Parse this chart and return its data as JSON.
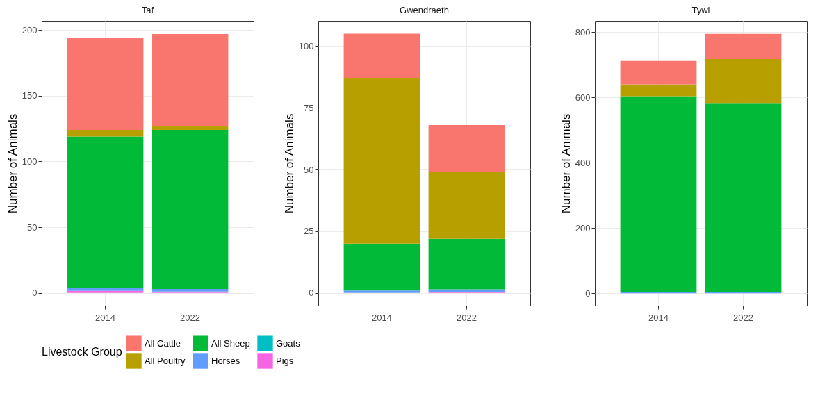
{
  "chart_data": [
    {
      "type": "bar",
      "title": "Taf",
      "ylabel": "Number of Animals",
      "categories": [
        "2014",
        "2022"
      ],
      "stacked": true,
      "ylim": [
        -9.7,
        207
      ],
      "yticks": [
        0,
        50,
        100,
        150,
        200
      ],
      "grid": true,
      "legend": "bottom",
      "legend_title": "Livestock Group",
      "series": [
        {
          "name": "Pigs",
          "color": "#f564e3",
          "values": [
            1.5,
            1
          ]
        },
        {
          "name": "Goats",
          "color": "#00bfc4",
          "values": [
            0,
            0
          ]
        },
        {
          "name": "Horses",
          "color": "#619cff",
          "values": [
            2.5,
            2
          ]
        },
        {
          "name": "All Sheep",
          "color": "#00ba38",
          "values": [
            115,
            121
          ]
        },
        {
          "name": "All Poultry",
          "color": "#b79f00",
          "values": [
            5,
            3
          ]
        },
        {
          "name": "All Cattle",
          "color": "#f8766d",
          "values": [
            70,
            70
          ]
        }
      ]
    },
    {
      "type": "bar",
      "title": "Gwendraeth",
      "ylabel": "Number of Animals",
      "categories": [
        "2014",
        "2022"
      ],
      "stacked": true,
      "ylim": [
        -5.1,
        110.2
      ],
      "yticks": [
        0,
        25,
        50,
        75,
        100
      ],
      "grid": true,
      "series": [
        {
          "name": "Pigs",
          "color": "#f564e3",
          "values": [
            0,
            0.5
          ]
        },
        {
          "name": "Horses",
          "color": "#619cff",
          "values": [
            1,
            1
          ]
        },
        {
          "name": "All Sheep",
          "color": "#00ba38",
          "values": [
            19,
            20.5
          ]
        },
        {
          "name": "All Poultry",
          "color": "#b79f00",
          "values": [
            67,
            27
          ]
        },
        {
          "name": "All Cattle",
          "color": "#f8766d",
          "values": [
            18,
            19
          ]
        }
      ]
    },
    {
      "type": "bar",
      "title": "Tywi",
      "ylabel": "Number of Animals",
      "categories": [
        "2014",
        "2022"
      ],
      "stacked": true,
      "ylim": [
        -38,
        835
      ],
      "yticks": [
        0,
        200,
        400,
        600,
        800
      ],
      "grid": true,
      "series": [
        {
          "name": "Pigs",
          "color": "#f564e3",
          "values": [
            0,
            0
          ]
        },
        {
          "name": "Horses",
          "color": "#619cff",
          "values": [
            3,
            3
          ]
        },
        {
          "name": "All Sheep",
          "color": "#00ba38",
          "values": [
            601,
            578
          ]
        },
        {
          "name": "All Poultry",
          "color": "#b79f00",
          "values": [
            36,
            137
          ]
        },
        {
          "name": "All Cattle",
          "color": "#f8766d",
          "values": [
            72,
            77
          ]
        }
      ]
    }
  ]
}
